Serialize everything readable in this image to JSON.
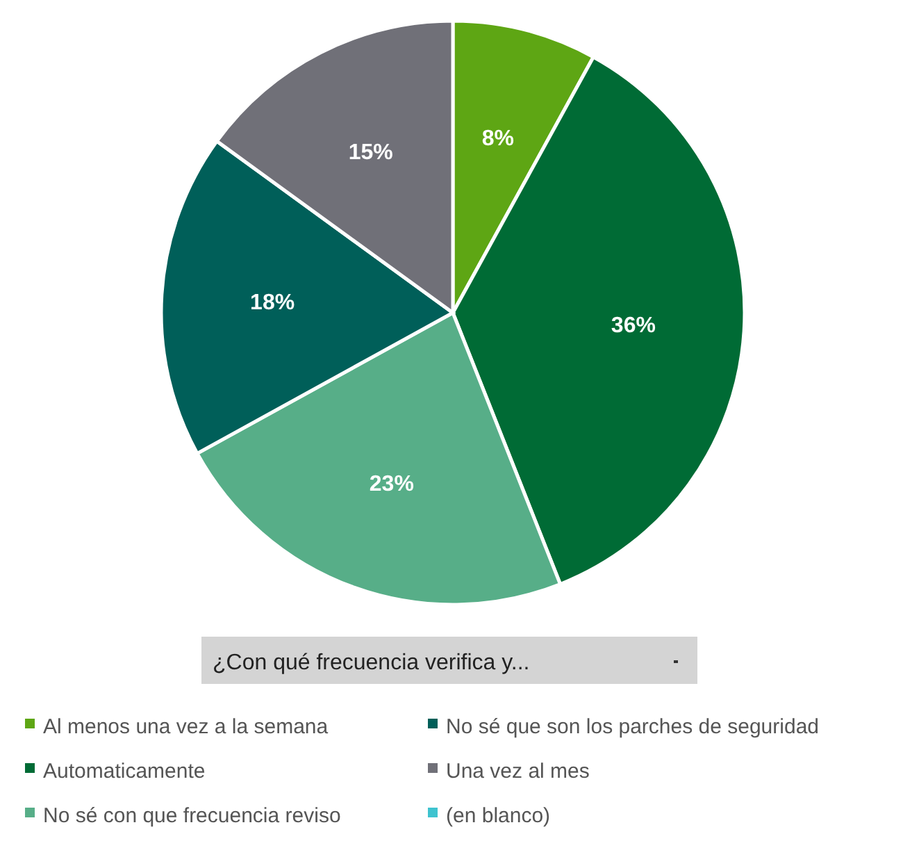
{
  "chart_data": {
    "type": "pie",
    "legend_title": "¿Con qué frecuencia verifica y...",
    "categories": [
      "Al menos una vez a la semana",
      "Automaticamente",
      "No sé con que frecuencia reviso",
      "No sé que son los parches de seguridad",
      "Una vez al mes",
      "(en blanco)"
    ],
    "values": [
      8,
      36,
      23,
      18,
      15,
      0
    ],
    "colors": [
      "#5ea614",
      "#006b35",
      "#57ae88",
      "#005f59",
      "#707078",
      "#3ec3cf"
    ],
    "value_labels": [
      "8%",
      "36%",
      "23%",
      "18%",
      "15%",
      null
    ],
    "legend": "bottom"
  }
}
